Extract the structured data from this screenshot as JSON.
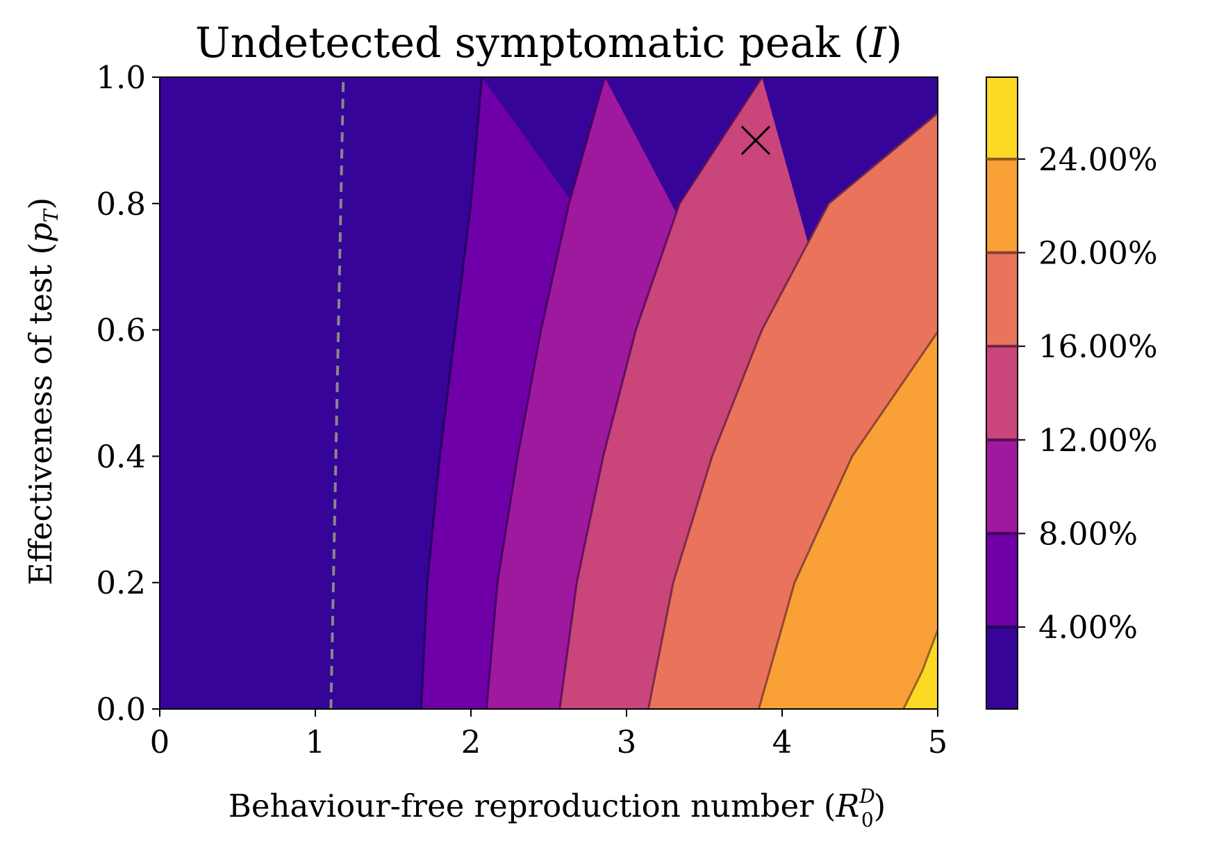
{
  "chart_data": {
    "type": "contourf",
    "title": "Undetected symptomatic peak (I)",
    "title_prefix": "Undetected symptomatic peak (",
    "title_var": "I",
    "title_suffix": ")",
    "xlabel": "Behaviour-free reproduction number (R0D)",
    "xlabel_prefix": "Behaviour-free reproduction number (",
    "xlabel_var": "R",
    "xlabel_sub": "0",
    "xlabel_sup": "D",
    "xlabel_suffix": ")",
    "ylabel": "Effectiveness of test (pT)",
    "ylabel_prefix": "Effectiveness of test (",
    "ylabel_var": "p",
    "ylabel_sub": "T",
    "ylabel_suffix": ")",
    "xlim": [
      0,
      5
    ],
    "ylim": [
      0,
      1
    ],
    "xticks": [
      {
        "value": 0,
        "label": "0"
      },
      {
        "value": 1,
        "label": "1"
      },
      {
        "value": 2,
        "label": "2"
      },
      {
        "value": 3,
        "label": "3"
      },
      {
        "value": 4,
        "label": "4"
      },
      {
        "value": 5,
        "label": "5"
      }
    ],
    "yticks": [
      {
        "value": 0.0,
        "label": "0.0"
      },
      {
        "value": 0.2,
        "label": "0.2"
      },
      {
        "value": 0.4,
        "label": "0.4"
      },
      {
        "value": 0.6,
        "label": "0.6"
      },
      {
        "value": 0.8,
        "label": "0.8"
      },
      {
        "value": 1.0,
        "label": "1.0"
      }
    ],
    "colorbar": {
      "min": 0.005,
      "max": 0.275,
      "levels": [
        {
          "value": 0.04,
          "label": "4.00%"
        },
        {
          "value": 0.08,
          "label": "8.00%"
        },
        {
          "value": 0.12,
          "label": "12.00%"
        },
        {
          "value": 0.16,
          "label": "16.00%"
        },
        {
          "value": 0.2,
          "label": "20.00%"
        },
        {
          "value": 0.24,
          "label": "24.00%"
        }
      ],
      "band_colors": [
        "#360498",
        "#6f00a8",
        "#9e199d",
        "#ca457a",
        "#ea735c",
        "#f9a037",
        "#fcd924"
      ],
      "line_colors": [
        "#1e0255",
        "#3e005e",
        "#590e58",
        "#712743",
        "#834032",
        "#8b5a1f",
        "#8d7a14"
      ]
    },
    "contours": [
      {
        "level": "4.00%",
        "points": [
          [
            1.68,
            0.0
          ],
          [
            1.72,
            0.2
          ],
          [
            1.8,
            0.4
          ],
          [
            1.9,
            0.6
          ],
          [
            2.0,
            0.8
          ],
          [
            2.07,
            1.0
          ]
        ]
      },
      {
        "level": "8.00%",
        "points": [
          [
            2.1,
            0.0
          ],
          [
            2.17,
            0.2
          ],
          [
            2.3,
            0.4
          ],
          [
            2.45,
            0.6
          ],
          [
            2.63,
            0.8
          ],
          [
            2.86,
            1.0
          ]
        ]
      },
      {
        "level": "12.00%",
        "points": [
          [
            2.57,
            0.0
          ],
          [
            2.68,
            0.2
          ],
          [
            2.85,
            0.4
          ],
          [
            3.06,
            0.6
          ],
          [
            3.34,
            0.8
          ],
          [
            3.87,
            1.0
          ]
        ]
      },
      {
        "level": "16.00%",
        "points": [
          [
            3.14,
            0.0
          ],
          [
            3.3,
            0.2
          ],
          [
            3.55,
            0.4
          ],
          [
            3.87,
            0.6
          ],
          [
            4.3,
            0.8
          ],
          [
            5.0,
            0.943
          ]
        ]
      },
      {
        "level": "20.00%",
        "points": [
          [
            3.85,
            0.0
          ],
          [
            4.08,
            0.2
          ],
          [
            4.45,
            0.4
          ],
          [
            5.0,
            0.597
          ]
        ]
      },
      {
        "level": "24.00%",
        "points": [
          [
            4.78,
            0.0
          ],
          [
            4.9,
            0.06
          ],
          [
            5.0,
            0.125
          ]
        ]
      }
    ],
    "threshold_line": {
      "style": "dashed",
      "color": "#888888",
      "points": [
        [
          1.1,
          0.0
        ],
        [
          1.18,
          1.0
        ]
      ]
    },
    "marker": {
      "symbol": "x",
      "x": 3.83,
      "y": 0.9
    }
  }
}
